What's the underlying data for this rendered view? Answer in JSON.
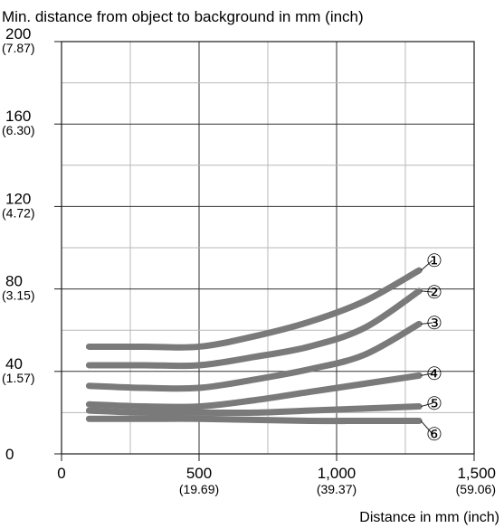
{
  "chart_data": {
    "type": "line",
    "title": "Min. distance from object to background in mm (inch)",
    "xlabel": "Distance in mm (inch)",
    "ylabel": "",
    "xlim": [
      0,
      1500
    ],
    "ylim": [
      0,
      200
    ],
    "grid": true,
    "x_ticks": [
      {
        "value": 0,
        "label": "0",
        "sub": ""
      },
      {
        "value": 500,
        "label": "500",
        "sub": "(19.69)"
      },
      {
        "value": 1000,
        "label": "1,000",
        "sub": "(39.37)"
      },
      {
        "value": 1500,
        "label": "1,500",
        "sub": "(59.06)"
      }
    ],
    "y_ticks": [
      {
        "value": 0,
        "label": "0",
        "sub": ""
      },
      {
        "value": 40,
        "label": "40",
        "sub": "(1.57)"
      },
      {
        "value": 80,
        "label": "80",
        "sub": "(3.15)"
      },
      {
        "value": 120,
        "label": "120",
        "sub": "(4.72)"
      },
      {
        "value": 160,
        "label": "160",
        "sub": "(6.30)"
      },
      {
        "value": 200,
        "label": "200",
        "sub": "(7.87)"
      }
    ],
    "series": [
      {
        "label": "①",
        "x": [
          100,
          300,
          500,
          700,
          900,
          1100,
          1300
        ],
        "y": [
          52,
          52,
          52,
          57,
          64,
          74,
          89
        ]
      },
      {
        "label": "②",
        "x": [
          100,
          300,
          500,
          700,
          900,
          1100,
          1300
        ],
        "y": [
          43,
          43,
          43,
          47,
          52,
          61,
          79
        ]
      },
      {
        "label": "③",
        "x": [
          100,
          300,
          500,
          700,
          900,
          1100,
          1300
        ],
        "y": [
          33,
          32,
          32,
          36,
          41,
          48,
          63
        ]
      },
      {
        "label": "④",
        "x": [
          100,
          300,
          500,
          700,
          900,
          1100,
          1300
        ],
        "y": [
          24,
          23,
          23,
          26,
          30,
          34,
          38
        ]
      },
      {
        "label": "⑤",
        "x": [
          100,
          300,
          500,
          700,
          900,
          1100,
          1300
        ],
        "y": [
          21,
          20,
          20,
          20,
          21,
          22,
          23
        ]
      },
      {
        "label": "⑥",
        "x": [
          100,
          300,
          500,
          700,
          900,
          1100,
          1300
        ],
        "y": [
          17,
          17,
          17,
          16.5,
          16,
          16,
          16
        ]
      }
    ],
    "series_color": "#7a7a7a",
    "grid_color": "#b8b8b8",
    "axis_color": "#1a1a1a"
  }
}
